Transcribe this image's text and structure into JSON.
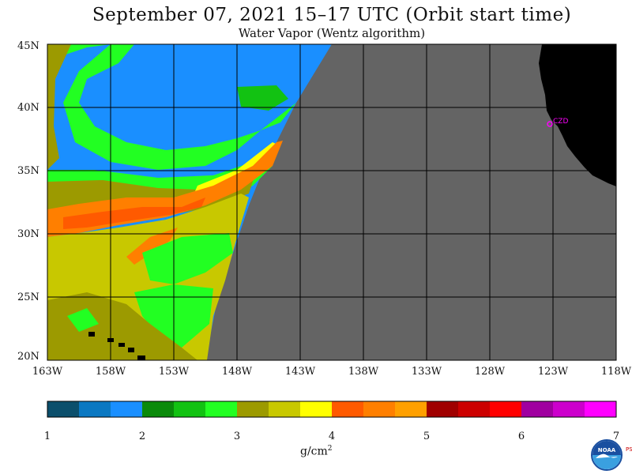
{
  "title": "September 07, 2021  15–17 UTC  (Orbit start time)",
  "subtitle": "Water Vapor (Wentz algorithm)",
  "lat_labels": [
    "45N",
    "40N",
    "35N",
    "30N",
    "25N",
    "20N"
  ],
  "lon_labels": [
    "163W",
    "158W",
    "153W",
    "148W",
    "143W",
    "138W",
    "133W",
    "128W",
    "123W",
    "118W"
  ],
  "station_label": "CZD",
  "colorbar": {
    "tick_labels": [
      "1",
      "2",
      "3",
      "4",
      "5",
      "6",
      "7"
    ],
    "units_text": "g/cm",
    "units_sup": "2",
    "colors": [
      "#0b4f6c",
      "#0a78c2",
      "#1a8fff",
      "#0a8a0a",
      "#12c212",
      "#22ff22",
      "#9c9a00",
      "#c8c800",
      "#ffff00",
      "#ff5a00",
      "#ff7f00",
      "#ffa000",
      "#a00000",
      "#cc0000",
      "#ff0000",
      "#a000a0",
      "#cc00cc",
      "#ff00ff"
    ]
  },
  "logo": {
    "text": "NOAA",
    "side_text": "PSL"
  },
  "colors": {
    "ocean_dry": "#1a8fff",
    "no_data": "#646464",
    "land": "#000000",
    "station": "#ff00ff"
  }
}
